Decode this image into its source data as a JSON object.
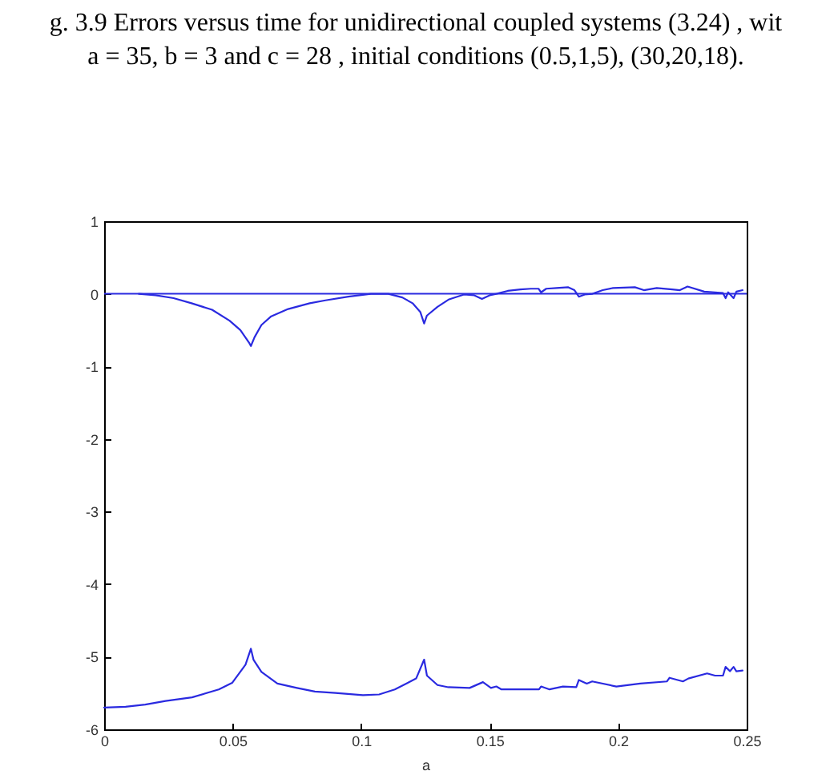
{
  "chart_data": {
    "type": "line",
    "title": "g. 3.9 Errors versus time for unidirectional coupled systems (3.24) , wit",
    "subtitle": "a = 35, b = 3 and c = 28 , initial conditions (0.5,1,5), (30,20,18).",
    "xlabel": "a",
    "xlim": [
      0,
      0.25
    ],
    "xticks": [
      0,
      0.05,
      0.1,
      0.15,
      0.2,
      0.25
    ],
    "ylim": [
      -6,
      1
    ],
    "yticks": [
      -6,
      -5,
      -4,
      -3,
      -2,
      -1,
      0,
      1
    ],
    "grid": false,
    "line_style": "solid",
    "ref_lines": [
      {
        "axis": "y",
        "value": 0,
        "color": "#2a2ae0"
      }
    ],
    "series": [
      {
        "color": "#2a2ae0",
        "x": [
          0.0135,
          0.02,
          0.027,
          0.034,
          0.042,
          0.0488,
          0.053,
          0.0565,
          0.0571,
          0.0585,
          0.0612,
          0.065,
          0.0716,
          0.08,
          0.0861,
          0.095,
          0.1038,
          0.1106,
          0.116,
          0.12,
          0.123,
          0.1245,
          0.1256,
          0.1297,
          0.134,
          0.14,
          0.144,
          0.147,
          0.15,
          0.1526,
          0.157,
          0.162,
          0.166,
          0.169,
          0.17,
          0.172,
          0.176,
          0.1806,
          0.183,
          0.1847,
          0.187,
          0.19,
          0.194,
          0.198,
          0.2065,
          0.21,
          0.215,
          0.221,
          0.224,
          0.227,
          0.2335,
          0.2408,
          0.2418,
          0.2428,
          0.2449,
          0.246,
          0.2484
        ],
        "values": [
          0,
          -0.02,
          -0.06,
          -0.13,
          -0.22,
          -0.37,
          -0.5,
          -0.68,
          -0.72,
          -0.6,
          -0.43,
          -0.31,
          -0.21,
          -0.13,
          -0.09,
          -0.04,
          0,
          0,
          -0.05,
          -0.13,
          -0.25,
          -0.41,
          -0.3,
          -0.18,
          -0.08,
          -0.01,
          -0.02,
          -0.07,
          -0.02,
          0,
          0.04,
          0.06,
          0.07,
          0.07,
          0.02,
          0.07,
          0.08,
          0.09,
          0.05,
          -0.04,
          -0.01,
          0,
          0.05,
          0.08,
          0.09,
          0.05,
          0.08,
          0.06,
          0.05,
          0.1,
          0.03,
          0.01,
          -0.06,
          0.02,
          -0.06,
          0.03,
          0.05
        ]
      },
      {
        "color": "#2a2ae0",
        "x": [
          0,
          0.0083,
          0.016,
          0.0239,
          0.0342,
          0.0446,
          0.0498,
          0.055,
          0.0571,
          0.0581,
          0.0612,
          0.0674,
          0.075,
          0.082,
          0.09,
          0.1007,
          0.107,
          0.1131,
          0.1214,
          0.1245,
          0.1256,
          0.1297,
          0.1339,
          0.1422,
          0.1474,
          0.1505,
          0.1526,
          0.1546,
          0.1692,
          0.17,
          0.1733,
          0.1785,
          0.1837,
          0.1847,
          0.1878,
          0.1899,
          0.1993,
          0.2086,
          0.219,
          0.22,
          0.2252,
          0.2273,
          0.2346,
          0.2377,
          0.2408,
          0.2418,
          0.2435,
          0.2449,
          0.246,
          0.2484
        ],
        "values": [
          -5.7,
          -5.69,
          -5.66,
          -5.61,
          -5.56,
          -5.45,
          -5.36,
          -5.11,
          -4.89,
          -5.04,
          -5.21,
          -5.37,
          -5.43,
          -5.48,
          -5.5,
          -5.53,
          -5.52,
          -5.45,
          -5.3,
          -5.04,
          -5.26,
          -5.39,
          -5.42,
          -5.43,
          -5.35,
          -5.43,
          -5.41,
          -5.45,
          -5.45,
          -5.41,
          -5.45,
          -5.41,
          -5.42,
          -5.32,
          -5.37,
          -5.34,
          -5.41,
          -5.37,
          -5.34,
          -5.29,
          -5.34,
          -5.3,
          -5.23,
          -5.26,
          -5.26,
          -5.14,
          -5.2,
          -5.14,
          -5.2,
          -5.19
        ]
      }
    ]
  }
}
